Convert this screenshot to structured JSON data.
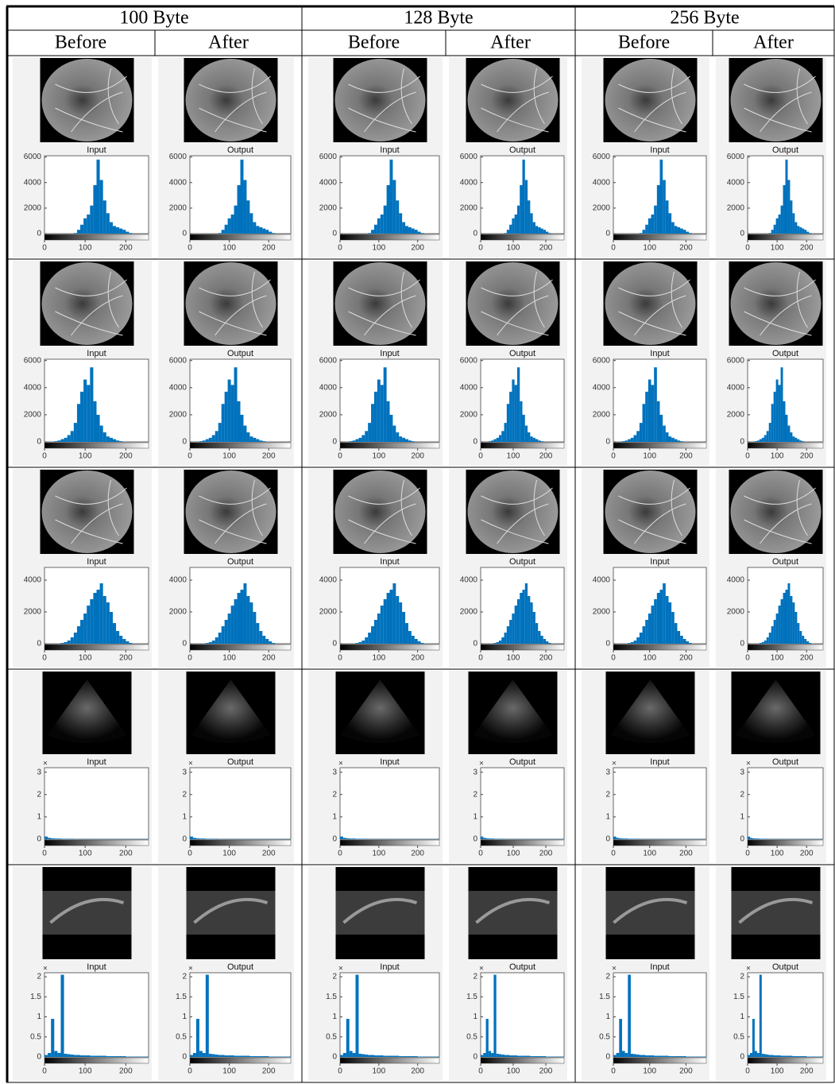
{
  "table": {
    "groups": [
      "100 Byte",
      "128 Byte",
      "256 Byte"
    ],
    "subheaders": [
      "Before",
      "After"
    ],
    "plot_titles": [
      "Input",
      "Output"
    ],
    "rows": [
      {
        "xlim": [
          0,
          256
        ],
        "xticks": [
          0,
          100,
          200
        ],
        "ylim": [
          0,
          6100
        ],
        "yticks": [
          0,
          2000,
          4000,
          6000
        ],
        "bins": [
          0,
          8,
          16,
          24,
          32,
          40,
          48,
          56,
          64,
          72,
          80,
          88,
          96,
          104,
          112,
          120,
          128,
          136,
          144,
          152,
          160,
          168,
          176,
          184,
          192,
          200,
          208,
          216,
          224,
          232,
          240,
          248,
          256
        ],
        "values": [
          0,
          0,
          0,
          0,
          0,
          0,
          0,
          0,
          0,
          50,
          300,
          700,
          1200,
          1500,
          2200,
          3800,
          5800,
          4200,
          2600,
          1600,
          900,
          600,
          500,
          400,
          300,
          150,
          50,
          0,
          0,
          0,
          0,
          0
        ]
      },
      {
        "xlim": [
          0,
          256
        ],
        "xticks": [
          0,
          100,
          200
        ],
        "ylim": [
          0,
          6100
        ],
        "yticks": [
          0,
          2000,
          4000,
          6000
        ],
        "bins": [
          0,
          8,
          16,
          24,
          32,
          40,
          48,
          56,
          64,
          72,
          80,
          88,
          96,
          104,
          112,
          120,
          128,
          136,
          144,
          152,
          160,
          168,
          176,
          184,
          192,
          200,
          208,
          216,
          224,
          232,
          240,
          248,
          256
        ],
        "values": [
          0,
          0,
          0,
          50,
          100,
          200,
          300,
          500,
          800,
          1400,
          2800,
          3700,
          4600,
          4200,
          5500,
          3000,
          2000,
          1200,
          700,
          400,
          300,
          200,
          100,
          50,
          0,
          0,
          0,
          0,
          0,
          0,
          0,
          0
        ]
      },
      {
        "xlim": [
          0,
          256
        ],
        "xticks": [
          0,
          100,
          200
        ],
        "ylim": [
          0,
          4800
        ],
        "yticks": [
          0,
          2000,
          4000
        ],
        "bins": [
          0,
          8,
          16,
          24,
          32,
          40,
          48,
          56,
          64,
          72,
          80,
          88,
          96,
          104,
          112,
          120,
          128,
          136,
          144,
          152,
          160,
          168,
          176,
          184,
          192,
          200,
          208,
          216,
          224,
          232,
          240,
          248,
          256
        ],
        "values": [
          0,
          0,
          0,
          0,
          0,
          50,
          100,
          200,
          400,
          700,
          1100,
          1500,
          1900,
          2400,
          2800,
          3200,
          3400,
          3800,
          3000,
          2600,
          2000,
          1300,
          800,
          500,
          300,
          150,
          50,
          0,
          0,
          0,
          0,
          0
        ]
      },
      {
        "xlim": [
          0,
          256
        ],
        "xticks": [
          0,
          100,
          200
        ],
        "ylim": [
          0,
          3.2
        ],
        "yticks": [
          0,
          1,
          2,
          3
        ],
        "y_multiplier": "×",
        "bins": [
          0,
          8,
          16,
          24,
          32,
          40,
          48,
          56,
          64,
          72,
          80,
          88,
          96,
          104,
          112,
          120,
          128,
          136,
          144,
          152,
          160,
          168,
          176,
          184,
          192,
          200,
          208,
          216,
          224,
          232,
          240,
          248,
          256
        ],
        "values": [
          0.12,
          0.06,
          0.04,
          0.03,
          0.03,
          0.02,
          0.02,
          0.02,
          0.02,
          0.01,
          0.01,
          0.01,
          0.01,
          0.01,
          0.01,
          0.01,
          0.01,
          0.01,
          0.01,
          0.01,
          0.01,
          0.01,
          0.01,
          0.01,
          0.01,
          0.01,
          0.01,
          0.01,
          0.01,
          0.01,
          0.01,
          0.01
        ]
      },
      {
        "xlim": [
          0,
          256
        ],
        "xticks": [
          0,
          100,
          200
        ],
        "ylim": [
          0,
          2.1
        ],
        "yticks": [
          0,
          0.5,
          1,
          1.5,
          2
        ],
        "y_multiplier": "×",
        "bins": [
          0,
          8,
          16,
          24,
          32,
          40,
          48,
          56,
          64,
          72,
          80,
          88,
          96,
          104,
          112,
          120,
          128,
          136,
          144,
          152,
          160,
          168,
          176,
          184,
          192,
          200,
          208,
          216,
          224,
          232,
          240,
          248,
          256
        ],
        "values": [
          0.05,
          0.1,
          0.95,
          0.15,
          0.1,
          2.05,
          0.08,
          0.07,
          0.06,
          0.05,
          0.05,
          0.04,
          0.04,
          0.04,
          0.03,
          0.03,
          0.03,
          0.03,
          0.03,
          0.02,
          0.02,
          0.02,
          0.02,
          0.02,
          0.02,
          0.01,
          0.01,
          0.01,
          0.01,
          0.01,
          0.01,
          0.01
        ]
      }
    ]
  }
}
